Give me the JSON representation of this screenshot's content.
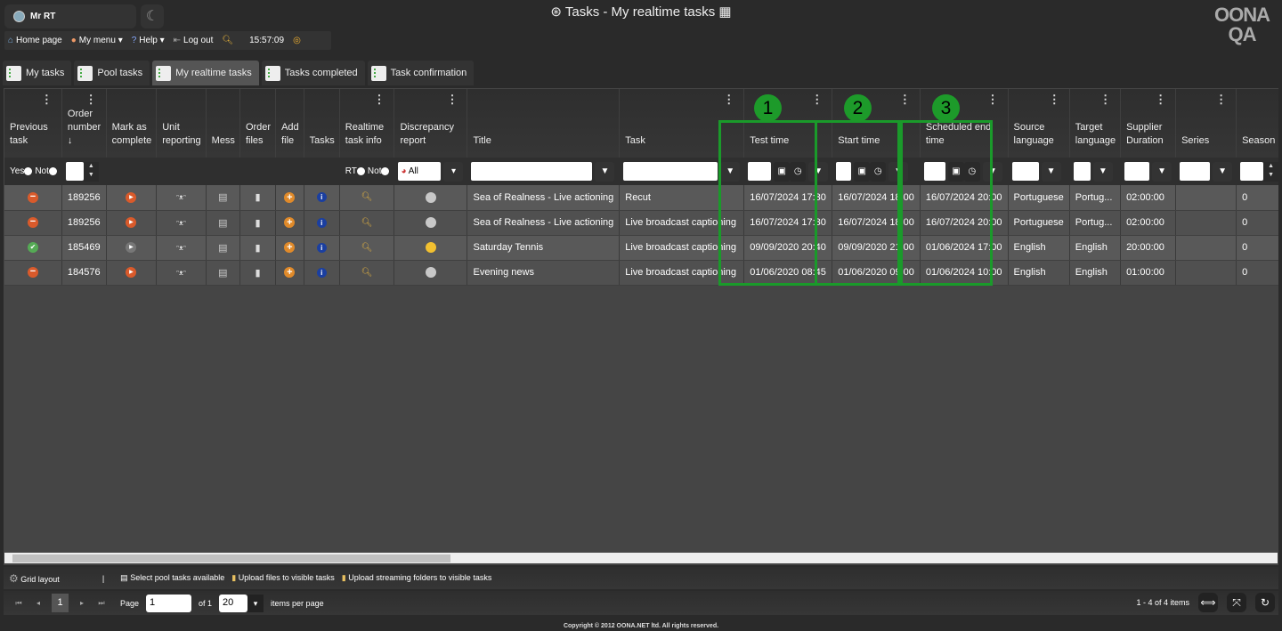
{
  "user": {
    "name": "Mr RT"
  },
  "window_title": "Tasks - My realtime tasks",
  "logo": {
    "line1": "OONA",
    "line2": "QA"
  },
  "menu": [
    {
      "label": "Home page",
      "icon": "home-icon"
    },
    {
      "label": "My menu ▾",
      "icon": "user-icon"
    },
    {
      "label": "Help ▾",
      "icon": "help-icon"
    },
    {
      "label": "Log out",
      "icon": "logout-icon"
    }
  ],
  "clock": "15:57:09",
  "tabs": [
    {
      "label": "My tasks"
    },
    {
      "label": "Pool tasks"
    },
    {
      "label": "My realtime tasks",
      "active": true
    },
    {
      "label": "Tasks completed"
    },
    {
      "label": "Task confirmation"
    }
  ],
  "columns": [
    {
      "label": "Previous task",
      "menu": true,
      "filter": "radio",
      "radio": [
        "Yes",
        "Not"
      ]
    },
    {
      "label": "Order number ↓",
      "menu": true,
      "filter": "number"
    },
    {
      "label": "Mark as complete",
      "filter": "none"
    },
    {
      "label": "Unit reporting",
      "filter": "none"
    },
    {
      "label": "Mess",
      "filter": "none"
    },
    {
      "label": "Order files",
      "filter": "none"
    },
    {
      "label": "Add file",
      "filter": "none"
    },
    {
      "label": "Tasks",
      "filter": "none"
    },
    {
      "label": "Realtime task info",
      "menu": true,
      "filter": "radio",
      "radio": [
        "RT",
        "Not"
      ]
    },
    {
      "label": "Discrepancy report",
      "menu": true,
      "filter": "select",
      "value": "All"
    },
    {
      "label": "Title",
      "filter": "text"
    },
    {
      "label": "Task",
      "menu": true,
      "filter": "text"
    },
    {
      "label": "Test time",
      "menu": true,
      "filter": "datetime"
    },
    {
      "label": "Start time",
      "menu": true,
      "filter": "datetime"
    },
    {
      "label": "Scheduled end time",
      "menu": true,
      "filter": "datetime"
    },
    {
      "label": "Source language",
      "menu": true,
      "filter": "text"
    },
    {
      "label": "Target language",
      "menu": true,
      "filter": "text"
    },
    {
      "label": "Supplier Duration",
      "menu": true,
      "filter": "text"
    },
    {
      "label": "Series",
      "menu": true,
      "filter": "text"
    },
    {
      "label": "Season",
      "filter": "number"
    }
  ],
  "rows": [
    {
      "previous": "minus",
      "order": "189256",
      "mark": "play-active",
      "discrepancy": "gray",
      "title": "Sea of Realness - Live actioning",
      "task": "Recut",
      "test_time": "16/07/2024 17:30",
      "start_time": "16/07/2024 18:00",
      "end_time": "16/07/2024 20:00",
      "source": "Portuguese",
      "target": "Portug...",
      "duration": "02:00:00",
      "series": "",
      "season": "0"
    },
    {
      "previous": "minus",
      "order": "189256",
      "mark": "play-active",
      "discrepancy": "gray",
      "title": "Sea of Realness - Live actioning",
      "task": "Live broadcast captioning",
      "test_time": "16/07/2024 17:30",
      "start_time": "16/07/2024 18:00",
      "end_time": "16/07/2024 20:00",
      "source": "Portuguese",
      "target": "Portug...",
      "duration": "02:00:00",
      "series": "",
      "season": "0",
      "selected": true
    },
    {
      "previous": "check",
      "order": "185469",
      "mark": "play-inactive",
      "discrepancy": "yellow",
      "title": "Saturday Tennis",
      "task": "Live broadcast captioning",
      "test_time": "09/09/2020 20:40",
      "start_time": "09/09/2020 21:00",
      "end_time": "01/06/2024 17:00",
      "source": "English",
      "target": "English",
      "duration": "20:00:00",
      "series": "",
      "season": "0"
    },
    {
      "previous": "minus",
      "order": "184576",
      "mark": "play-active",
      "discrepancy": "gray",
      "title": "Evening news",
      "task": "Live broadcast captioning",
      "test_time": "01/06/2020 08:45",
      "start_time": "01/06/2020 09:00",
      "end_time": "01/06/2024 10:00",
      "source": "English",
      "target": "English",
      "duration": "01:00:00",
      "series": "",
      "season": "0"
    }
  ],
  "highlights": [
    "1",
    "2",
    "3"
  ],
  "toolbar": {
    "grid_layout": "Grid layout",
    "separator": "|",
    "select_pool": "Select pool tasks available",
    "upload_files": "Upload files to visible tasks",
    "upload_streaming": "Upload streaming folders to visible tasks"
  },
  "pager": {
    "current": "1",
    "page_label": "Page",
    "page_value": "1",
    "of_label": "of 1",
    "per_page": "20",
    "per_page_label": "items per page",
    "summary": "1 - 4 of 4 items"
  },
  "copyright": "Copyright © 2012 OONA.NET ltd. All rights reserved.",
  "colors": {
    "highlight": "#1a9a2a",
    "selected_row": "#4c5b76",
    "accent_orange": "#d95a2b"
  }
}
